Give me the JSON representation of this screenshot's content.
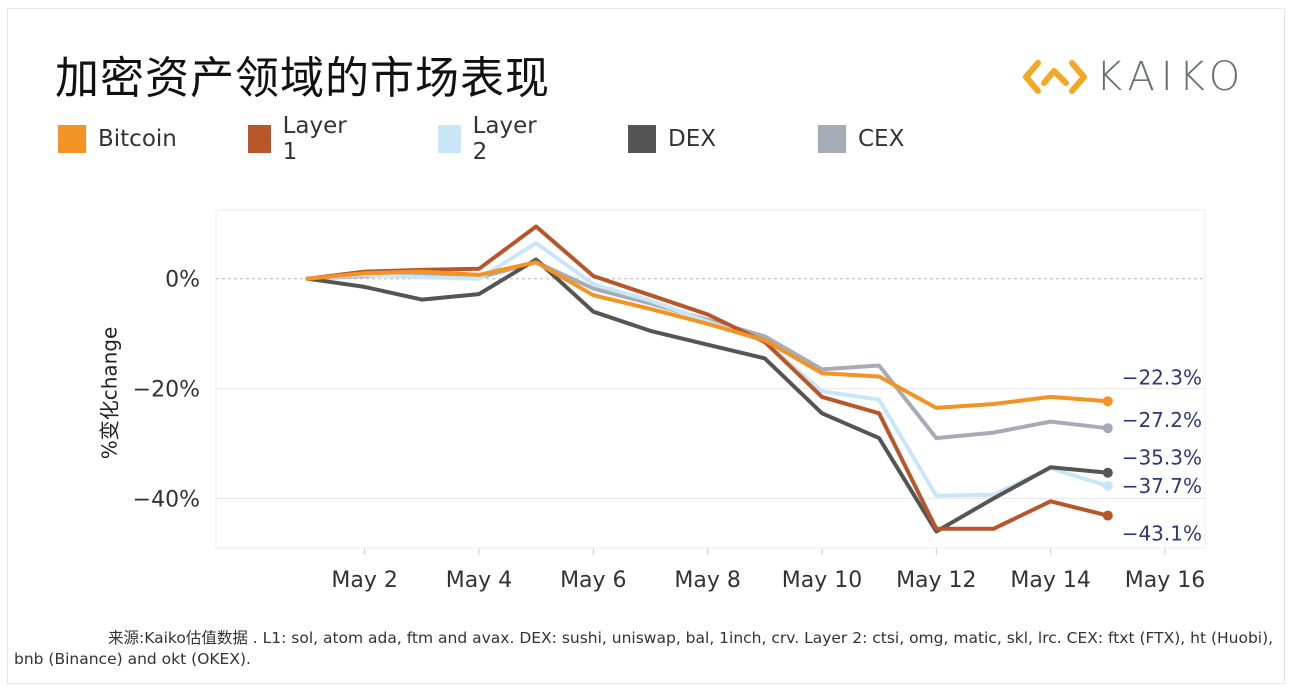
{
  "title": "加密资产领域的市场表现",
  "logo": {
    "text": "KAIKO",
    "icon": "kaiko-logo-icon",
    "color": "#f5a623"
  },
  "chart_data": {
    "type": "line",
    "title": "加密资产领域的市场表现",
    "xlabel": "",
    "ylabel": "%变化change",
    "x": [
      "May 1",
      "May 2",
      "May 3",
      "May 4",
      "May 5",
      "May 6",
      "May 7",
      "May 8",
      "May 9",
      "May 10",
      "May 11",
      "May 12",
      "May 13",
      "May 14",
      "May 15"
    ],
    "x_ticks": [
      "May 2",
      "May 4",
      "May 6",
      "May 8",
      "May 10",
      "May 12",
      "May 14",
      "May 16"
    ],
    "x_tick_positions": [
      2,
      4,
      6,
      8,
      10,
      12,
      14,
      16
    ],
    "xlim": [
      -0.6,
      16.7
    ],
    "ylim": [
      -49,
      12.5
    ],
    "y_ticks": [
      0,
      -20,
      -40
    ],
    "y_tick_labels": [
      "0%",
      "−20%",
      "−40%"
    ],
    "grid": true,
    "legend_position": "top",
    "series": [
      {
        "name": "CEX",
        "color": "#a6abb5",
        "values": [
          0,
          0.5,
          1.0,
          0.2,
          3.0,
          -1.8,
          -4.5,
          -7.5,
          -10.5,
          -16.5,
          -15.8,
          -29.0,
          -28.0,
          -26.0,
          -27.2
        ]
      },
      {
        "name": "Layer 2",
        "color": "#c9e6f8",
        "values": [
          0,
          0.7,
          0.3,
          0.0,
          6.5,
          -1.0,
          -4.0,
          -7.8,
          -11.5,
          -20.5,
          -22.0,
          -39.5,
          -39.3,
          -34.5,
          -37.7
        ]
      },
      {
        "name": "DEX",
        "color": "#555555",
        "values": [
          0,
          -1.5,
          -3.8,
          -2.8,
          3.5,
          -6.0,
          -9.5,
          -12.0,
          -14.5,
          -24.5,
          -29.0,
          -46.0,
          -40.0,
          -34.3,
          -35.3
        ]
      },
      {
        "name": "Layer 1",
        "color": "#b8562a",
        "values": [
          0,
          1.3,
          1.6,
          1.8,
          9.5,
          0.5,
          -3.0,
          -6.5,
          -11.5,
          -21.5,
          -24.5,
          -45.5,
          -45.5,
          -40.5,
          -43.1
        ]
      },
      {
        "name": "Bitcoin",
        "color": "#f39323",
        "values": [
          0,
          1.0,
          1.3,
          0.7,
          3.0,
          -3.0,
          -5.5,
          -8.2,
          -11.2,
          -17.2,
          -17.8,
          -23.5,
          -22.8,
          -21.5,
          -22.3
        ]
      }
    ],
    "end_labels": [
      {
        "text": "−22.3%",
        "value": -22.3
      },
      {
        "text": "−27.2%",
        "value": -27.2
      },
      {
        "text": "−35.3%",
        "value": -35.3
      },
      {
        "text": "−37.7%",
        "value": -37.7
      },
      {
        "text": "−43.1%",
        "value": -43.1
      }
    ],
    "label_color": "#2a3a7a"
  },
  "legend": [
    {
      "name": "Bitcoin",
      "color": "#f39323"
    },
    {
      "name": "Layer 1",
      "color": "#b8562a"
    },
    {
      "name": "Layer 2",
      "color": "#c9e6f8"
    },
    {
      "name": "DEX",
      "color": "#555555"
    },
    {
      "name": "CEX",
      "color": "#a6abb5"
    }
  ],
  "footnote": {
    "cn": "来源:Kaiko估值数据",
    "text": " . L1: sol, atom ada, ftm and avax. DEX: sushi, uniswap, bal, 1inch, crv. Layer 2: ctsi, omg, matic, skl, lrc. CEX:  ftxt (FTX), ht (Huobi), bnb (Binance) and okt (OKEX)."
  }
}
